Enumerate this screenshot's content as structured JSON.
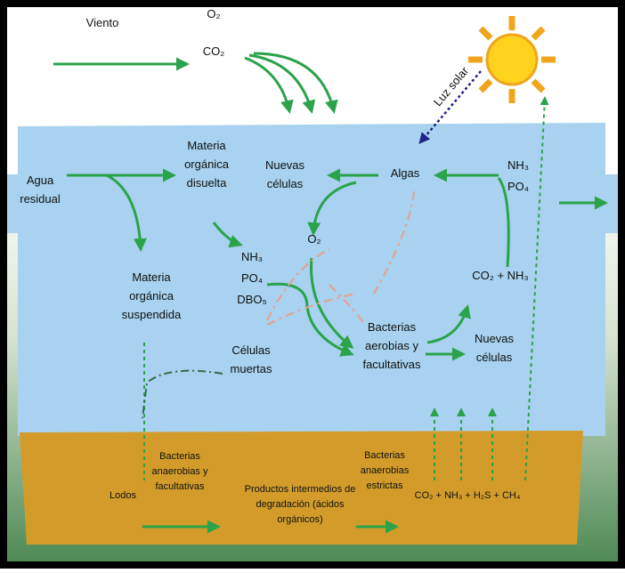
{
  "wind": "Viento",
  "gases": [
    "O₂",
    "CO₂"
  ],
  "sunlight": "Luz solar",
  "water": {
    "inflow": [
      "Agua",
      "residual"
    ],
    "dissolved": [
      "Materia",
      "orgánica",
      "disuelta"
    ],
    "new_cells_top": [
      "Nuevas",
      "células"
    ],
    "algae": "Algas",
    "nutrients_right": [
      "NH₃",
      "PO₄"
    ],
    "nutrients_mid": [
      "NH₃",
      "PO₄",
      "DBO₅"
    ],
    "oxygen": "O₂",
    "co2_nh3": "CO₂ + NH₃",
    "suspended": [
      "Materia",
      "orgánica",
      "suspendida"
    ],
    "bacteria": [
      "Bacterias",
      "aerobias y",
      "facultativas"
    ],
    "new_cells_bottom": [
      "Nuevas",
      "células"
    ],
    "dead_cells": [
      "Células",
      "muertas"
    ]
  },
  "sediment": {
    "anaerobic": [
      "Bacterias",
      "anaerobias y",
      "facultativas"
    ],
    "sludge": "Lodos",
    "intermediates": [
      "Productos intermedios de",
      "degradación (ácidos",
      "orgánicos)"
    ],
    "strict": [
      "Bacterias",
      "anaerobias",
      "estrictas"
    ],
    "gases": "CO₂ + NH₃ + H₂S + CH₄"
  }
}
